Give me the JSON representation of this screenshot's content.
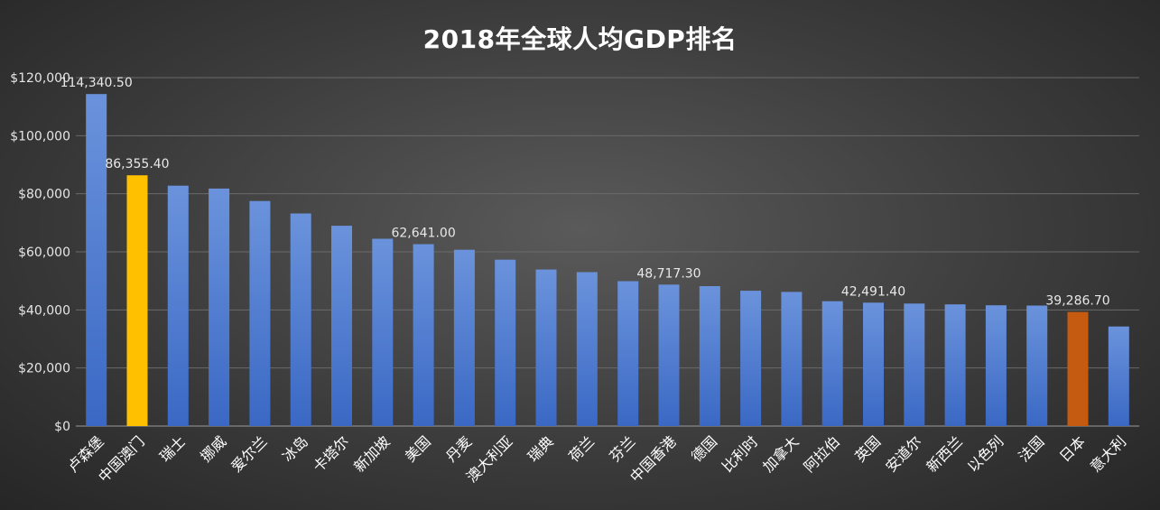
{
  "chart_data": {
    "type": "bar",
    "title": "2018年全球人均GDP排名",
    "categories": [
      "卢森堡",
      "中国澳门",
      "瑞士",
      "挪威",
      "爱尔兰",
      "冰岛",
      "卡塔尔",
      "新加坡",
      "美国",
      "丹麦",
      "澳大利亚",
      "瑞典",
      "荷兰",
      "芬兰",
      "中国香港",
      "德国",
      "比利时",
      "加拿大",
      "阿拉伯",
      "英国",
      "安道尔",
      "新西兰",
      "以色列",
      "法国",
      "日本",
      "意大利"
    ],
    "values": [
      114340.5,
      86355.4,
      82800,
      81800,
      77500,
      73200,
      69000,
      64500,
      62641.0,
      60700,
      57300,
      53900,
      53000,
      49900,
      48717.3,
      48200,
      46600,
      46200,
      43000,
      42491.4,
      42200,
      41900,
      41600,
      41500,
      39286.7,
      34300
    ],
    "data_labels": {
      "0": "114,340.50",
      "1": "86,355.40",
      "8": "62,641.00",
      "14": "48,717.30",
      "19": "42,491.40",
      "24": "39,286.70"
    },
    "y_ticks": [
      "$0",
      "$20,000",
      "$40,000",
      "$60,000",
      "$80,000",
      "$100,000",
      "$120,000"
    ],
    "ylim": [
      0,
      120000
    ],
    "grid": true,
    "legend": "none",
    "colors": {
      "default_bar_top": "#6b93dc",
      "default_bar_bottom": "#3a68c4",
      "highlight_macau": "#ffc000",
      "highlight_japan": "#c55a11"
    },
    "highlight": {
      "1": "highlight_macau",
      "24": "highlight_japan"
    }
  }
}
